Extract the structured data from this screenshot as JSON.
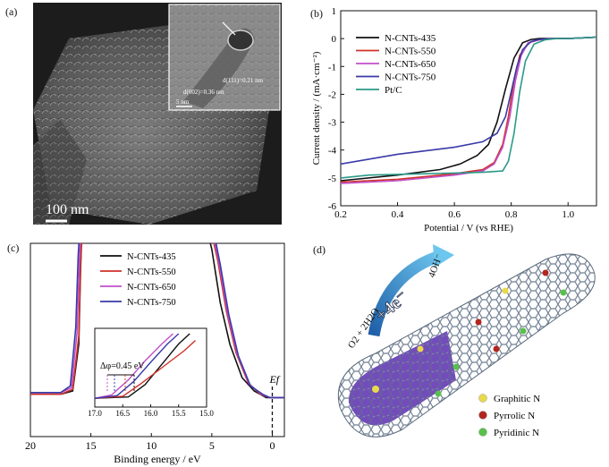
{
  "panels": {
    "a": {
      "label": "(a)",
      "scalebar": "100 nm",
      "inset": {
        "d111": "d(111)=0.21 nm",
        "d002": "d(002)=0.36 nm",
        "scale": "5 nm"
      }
    },
    "b": {
      "label": "(b)"
    },
    "c": {
      "label": "(c)"
    },
    "d": {
      "label": "(d)",
      "reactant": "O2 + 2H2O",
      "electrons": "+4e⁻",
      "product": "4OH⁻",
      "legend": [
        {
          "name": "Graphitic N",
          "color": "#e9d94a"
        },
        {
          "name": "Pyrrolic N",
          "color": "#b3261e"
        },
        {
          "name": "Pyridinic N",
          "color": "#58c04a"
        }
      ]
    }
  },
  "chart_data": [
    {
      "panel": "b",
      "type": "line",
      "xlabel": "Potential / V (vs RHE)",
      "ylabel": "Current density / (mA·cm⁻²)",
      "xlim": [
        0.2,
        1.1
      ],
      "ylim": [
        -6,
        1
      ],
      "xticks": [
        "0.2",
        "0.4",
        "0.6",
        "0.8",
        "1.0"
      ],
      "yticks": [
        "1",
        "0",
        "-1",
        "-2",
        "-3",
        "-4",
        "-5",
        "-6"
      ],
      "legend_position": "top-left",
      "series": [
        {
          "name": "N-CNTs-435",
          "color": "#111111",
          "x": [
            0.2,
            0.4,
            0.55,
            0.62,
            0.68,
            0.72,
            0.75,
            0.78,
            0.81,
            0.84,
            0.87,
            0.9,
            1.0,
            1.1
          ],
          "y": [
            -5.1,
            -4.9,
            -4.7,
            -4.5,
            -4.2,
            -3.8,
            -3.0,
            -1.8,
            -0.7,
            -0.15,
            -0.03,
            0.0,
            0.0,
            0.05
          ]
        },
        {
          "name": "N-CNTs-550",
          "color": "#d0302a",
          "x": [
            0.2,
            0.4,
            0.6,
            0.7,
            0.74,
            0.77,
            0.79,
            0.81,
            0.83,
            0.86,
            0.9,
            0.95,
            1.0,
            1.1
          ],
          "y": [
            -5.15,
            -5.05,
            -4.85,
            -4.7,
            -4.45,
            -3.8,
            -2.8,
            -1.5,
            -0.6,
            -0.15,
            -0.04,
            0.0,
            0.0,
            0.05
          ]
        },
        {
          "name": "N-CNTs-650",
          "color": "#c050c8",
          "x": [
            0.2,
            0.4,
            0.6,
            0.7,
            0.74,
            0.77,
            0.795,
            0.815,
            0.835,
            0.86,
            0.9,
            0.95,
            1.0,
            1.1
          ],
          "y": [
            -5.2,
            -5.1,
            -4.9,
            -4.75,
            -4.5,
            -3.9,
            -2.8,
            -1.5,
            -0.6,
            -0.15,
            -0.04,
            0.0,
            0.0,
            0.05
          ]
        },
        {
          "name": "N-CNTs-750",
          "color": "#3a3aa8",
          "x": [
            0.2,
            0.4,
            0.6,
            0.7,
            0.75,
            0.78,
            0.8,
            0.82,
            0.84,
            0.87,
            0.9,
            0.95,
            1.0,
            1.1
          ],
          "y": [
            -4.5,
            -4.15,
            -3.9,
            -3.7,
            -3.4,
            -2.8,
            -1.9,
            -1.0,
            -0.4,
            -0.1,
            -0.03,
            0.0,
            0.0,
            0.05
          ]
        },
        {
          "name": "Pt/C",
          "color": "#2a9a88",
          "x": [
            0.2,
            0.3,
            0.5,
            0.7,
            0.77,
            0.79,
            0.81,
            0.83,
            0.85,
            0.88,
            0.92,
            0.96,
            1.0,
            1.1
          ],
          "y": [
            -5.0,
            -4.9,
            -4.85,
            -4.8,
            -4.75,
            -4.4,
            -3.4,
            -1.9,
            -0.8,
            -0.2,
            -0.04,
            0.0,
            0.0,
            0.05
          ]
        }
      ]
    },
    {
      "panel": "c",
      "type": "line",
      "xlabel": "Binding energy / eV",
      "xlim": [
        20,
        -1
      ],
      "ylim": [
        0,
        1
      ],
      "xticks": [
        "20",
        "15",
        "10",
        "5",
        "0"
      ],
      "marker_label": "Ef",
      "legend_position": "top-left",
      "series": [
        {
          "name": "N-CNTs-435",
          "color": "#111111",
          "x": [
            20,
            17.5,
            16.5,
            16.0,
            15.85,
            15.75,
            5.3,
            5.0,
            4.3,
            3.5,
            2.5,
            1.5,
            0.5,
            -1
          ],
          "y": [
            0.05,
            0.05,
            0.07,
            0.35,
            0.8,
            1.0,
            1.0,
            0.92,
            0.6,
            0.35,
            0.15,
            0.07,
            0.03,
            0.03
          ]
        },
        {
          "name": "N-CNTs-550",
          "color": "#d0302a",
          "x": [
            20,
            17.5,
            16.5,
            16.0,
            15.85,
            15.75,
            5.0,
            4.5,
            3.8,
            3.0,
            2.0,
            1.0,
            0.2,
            -1
          ],
          "y": [
            0.05,
            0.05,
            0.08,
            0.4,
            0.85,
            1.0,
            1.0,
            0.85,
            0.55,
            0.3,
            0.12,
            0.05,
            0.03,
            0.03
          ]
        },
        {
          "name": "N-CNTs-650",
          "color": "#c050c8",
          "x": [
            20,
            17.5,
            16.6,
            16.15,
            15.95,
            15.85,
            4.9,
            4.4,
            3.7,
            2.9,
            1.9,
            0.9,
            0.2,
            -1
          ],
          "y": [
            0.06,
            0.06,
            0.09,
            0.42,
            0.86,
            1.0,
            1.0,
            0.84,
            0.54,
            0.29,
            0.11,
            0.05,
            0.03,
            0.03
          ]
        },
        {
          "name": "N-CNTs-750",
          "color": "#3a3aa8",
          "x": [
            20,
            17.5,
            16.7,
            16.25,
            16.05,
            15.95,
            4.8,
            4.3,
            3.6,
            2.8,
            1.8,
            0.8,
            0.2,
            -1
          ],
          "y": [
            0.06,
            0.06,
            0.1,
            0.45,
            0.88,
            1.0,
            1.0,
            0.83,
            0.53,
            0.28,
            0.1,
            0.05,
            0.03,
            0.03
          ]
        }
      ],
      "inset": {
        "xlim": [
          17.0,
          15.0
        ],
        "xticks": [
          "17.0",
          "16.5",
          "16.0",
          "15.5",
          "15.0"
        ],
        "annotation": "Δφ=0.45 eV",
        "series": [
          {
            "name": "N-CNTs-435",
            "color": "#111111",
            "x": [
              17.0,
              16.4,
              16.1,
              15.8,
              15.5,
              15.3
            ],
            "y": [
              0.05,
              0.07,
              0.25,
              0.55,
              0.85,
              1.0
            ]
          },
          {
            "name": "N-CNTs-550",
            "color": "#d0302a",
            "x": [
              17.0,
              16.5,
              16.2,
              15.8,
              15.4,
              15.2
            ],
            "y": [
              0.05,
              0.08,
              0.25,
              0.5,
              0.75,
              0.9
            ]
          },
          {
            "name": "N-CNTs-650",
            "color": "#c050c8",
            "x": [
              17.0,
              16.7,
              16.4,
              16.1,
              15.8,
              15.6
            ],
            "y": [
              0.05,
              0.1,
              0.32,
              0.6,
              0.85,
              1.0
            ]
          },
          {
            "name": "N-CNTs-750",
            "color": "#3a3aa8",
            "x": [
              17.0,
              16.6,
              16.3,
              16.0,
              15.7,
              15.5
            ],
            "y": [
              0.05,
              0.09,
              0.3,
              0.58,
              0.85,
              1.0
            ]
          }
        ]
      }
    }
  ]
}
